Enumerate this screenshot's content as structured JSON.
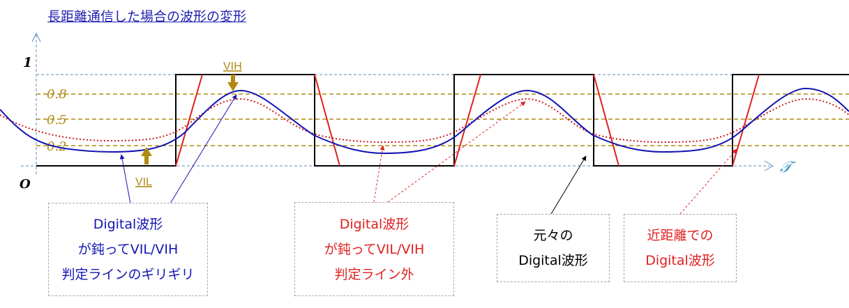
{
  "title": "長距離通信した場合の波形の変形",
  "axis": {
    "origin": "O",
    "time": "𝒯",
    "one": "1"
  },
  "levels": {
    "l08": "0.8",
    "l05": "0.5",
    "l02": "0.2"
  },
  "markers": {
    "vih": "VIH",
    "vil": "VIL"
  },
  "callouts": {
    "blue": {
      "line1": "Digital波形",
      "line2": "が鈍ってVIL/VIH",
      "line3": "判定ラインのギリギリ"
    },
    "red": {
      "line1": "Digital波形",
      "line2": "が鈍ってVIL/VIH",
      "line3": "判定ライン外"
    },
    "black": {
      "line1": "元々の",
      "line2": "Digital波形"
    },
    "near": {
      "line1": "近距離での",
      "line2": "Digital波形"
    }
  },
  "colors": {
    "blue": "#1414b4",
    "red": "#e02020",
    "gold": "#b08a10",
    "axis": "#5b8bbf",
    "black": "#000000"
  }
}
